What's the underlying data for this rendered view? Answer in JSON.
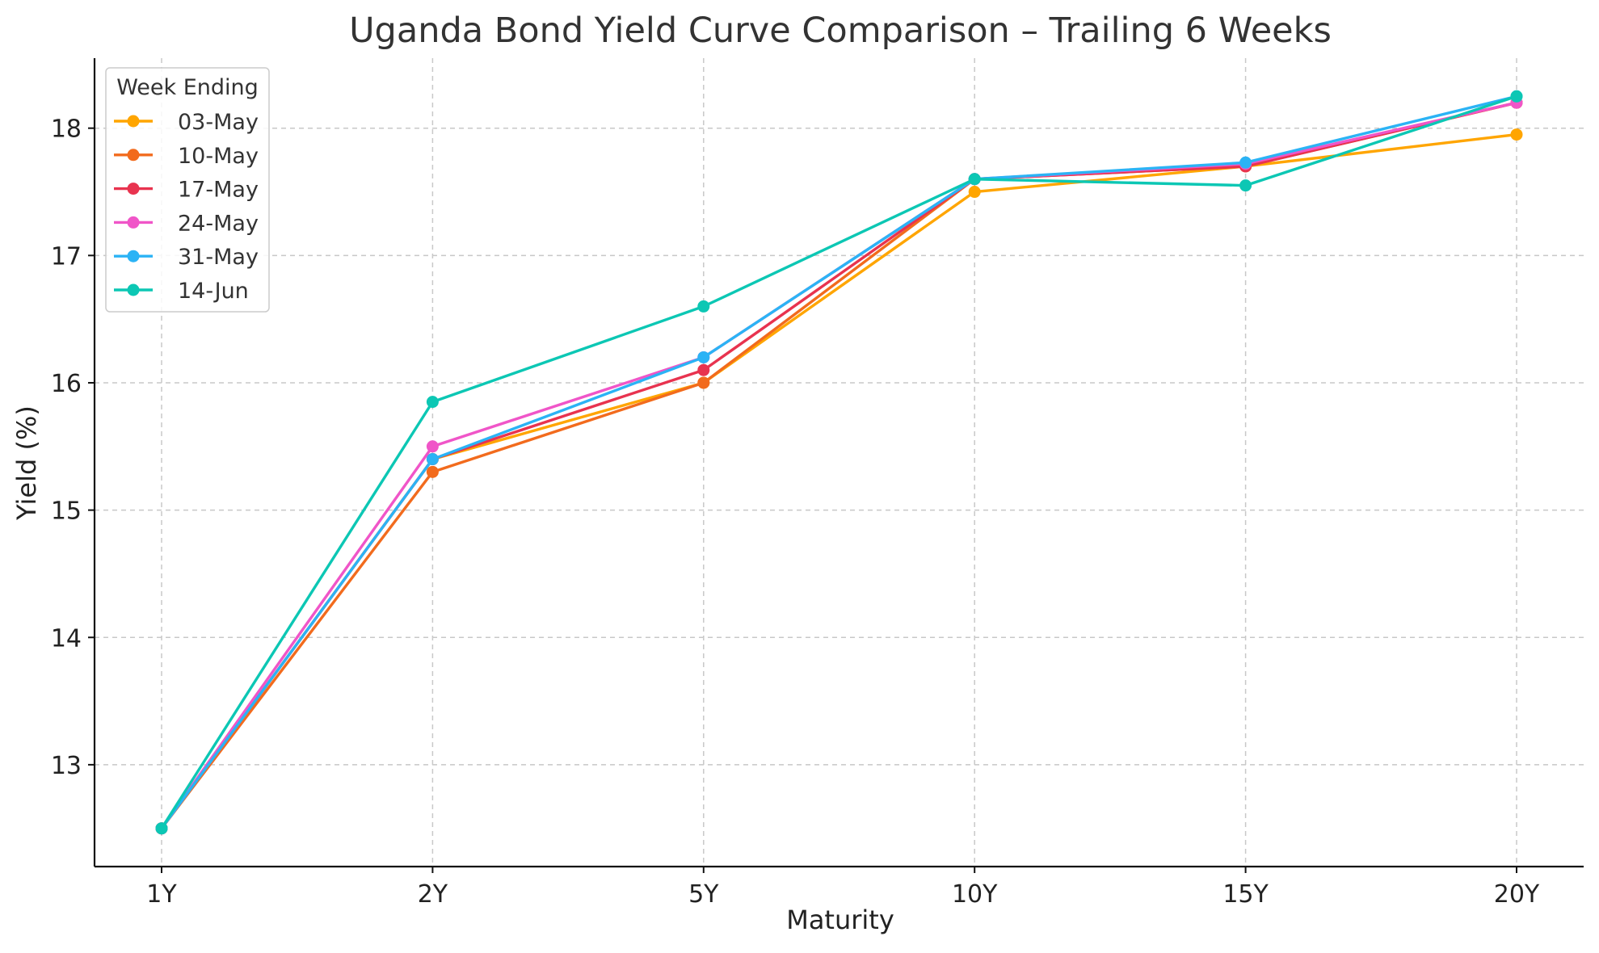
{
  "chart_data": {
    "type": "line",
    "title": "Uganda Bond Yield Curve Comparison – Trailing 6 Weeks",
    "xlabel": "Maturity",
    "ylabel": "Yield (%)",
    "categories": [
      "1Y",
      "2Y",
      "5Y",
      "10Y",
      "15Y",
      "20Y"
    ],
    "ylim": [
      12.2,
      18.55
    ],
    "yticks": [
      13,
      14,
      15,
      16,
      17,
      18
    ],
    "grid": true,
    "legend": {
      "title": "Week Ending",
      "placement": "top-left"
    },
    "series": [
      {
        "name": "03-May",
        "color": "#FFA500",
        "values": [
          12.5,
          15.4,
          16.0,
          17.5,
          17.7,
          17.95
        ]
      },
      {
        "name": "10-May",
        "color": "#F26B1D",
        "values": [
          12.5,
          15.3,
          16.0,
          17.6,
          17.7,
          18.2
        ]
      },
      {
        "name": "17-May",
        "color": "#E8334F",
        "values": [
          12.5,
          15.4,
          16.1,
          17.6,
          17.7,
          18.2
        ]
      },
      {
        "name": "24-May",
        "color": "#F055C8",
        "values": [
          12.5,
          15.5,
          16.2,
          17.6,
          17.72,
          18.2
        ]
      },
      {
        "name": "31-May",
        "color": "#2BB3F5",
        "values": [
          12.5,
          15.4,
          16.2,
          17.6,
          17.73,
          18.25
        ]
      },
      {
        "name": "14-Jun",
        "color": "#0CC7B4",
        "values": [
          12.5,
          15.85,
          16.6,
          17.6,
          17.55,
          18.25
        ]
      }
    ]
  }
}
